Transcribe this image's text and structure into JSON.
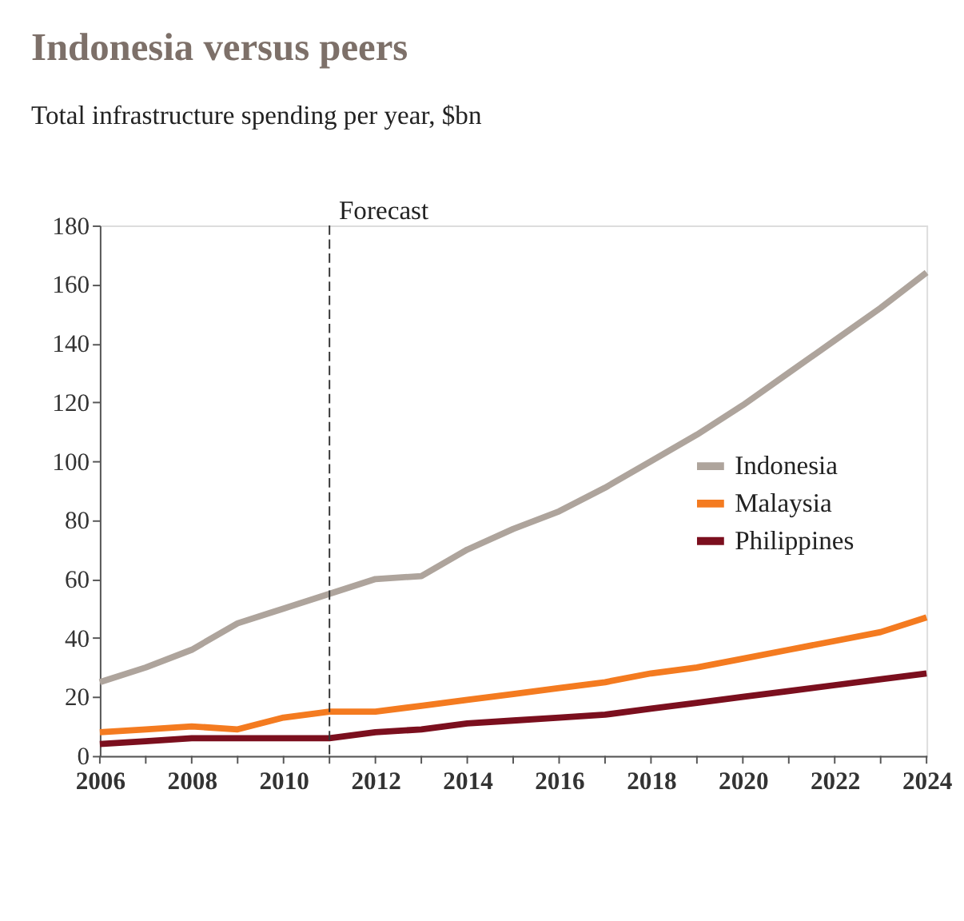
{
  "chart_data": {
    "type": "line",
    "title": "Indonesia versus peers",
    "subtitle": "Total infrastructure spending per year, $bn",
    "x": [
      2006,
      2007,
      2008,
      2009,
      2010,
      2011,
      2012,
      2013,
      2014,
      2015,
      2016,
      2017,
      2018,
      2019,
      2020,
      2021,
      2022,
      2023,
      2024
    ],
    "series": [
      {
        "name": "Indonesia",
        "color": "#aea49c",
        "values": [
          25,
          30,
          36,
          45,
          50,
          55,
          60,
          61,
          70,
          77,
          83,
          91,
          100,
          109,
          119,
          130,
          141,
          152,
          164
        ]
      },
      {
        "name": "Malaysia",
        "color": "#f47b20",
        "values": [
          8,
          9,
          10,
          9,
          13,
          15,
          15,
          17,
          19,
          21,
          23,
          25,
          28,
          30,
          33,
          36,
          39,
          42,
          47
        ]
      },
      {
        "name": "Philippines",
        "color": "#7b0f1e",
        "values": [
          4,
          5,
          6,
          6,
          6,
          6,
          8,
          9,
          11,
          12,
          13,
          14,
          16,
          18,
          20,
          22,
          24,
          26,
          28
        ]
      }
    ],
    "xlim": [
      2006,
      2024
    ],
    "xticks": [
      2006,
      {
        "value": 2007,
        "label": null
      },
      2008,
      {
        "value": 2009,
        "label": null
      },
      2010,
      {
        "value": 2011,
        "label": null
      },
      2012,
      {
        "value": 2013,
        "label": null
      },
      2014,
      {
        "value": 2015,
        "label": null
      },
      2016,
      {
        "value": 2017,
        "label": null
      },
      2018,
      {
        "value": 2019,
        "label": null
      },
      2020,
      {
        "value": 2021,
        "label": null
      },
      2022,
      {
        "value": 2023,
        "label": null
      },
      2024
    ],
    "ylim": [
      0,
      180
    ],
    "yticks": [
      0,
      20,
      40,
      60,
      80,
      100,
      120,
      140,
      160,
      180
    ],
    "ref_lines": [
      {
        "axis": "x",
        "value": 2011,
        "label": "Forecast",
        "color": "#333333",
        "line_style": "dashed"
      }
    ],
    "grid": false,
    "legend": "right",
    "marker": "none",
    "line_style": "solid"
  }
}
